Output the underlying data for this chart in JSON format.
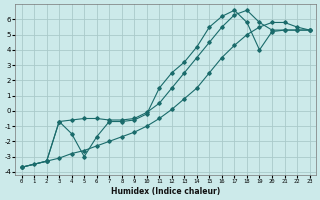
{
  "xlabel": "Humidex (Indice chaleur)",
  "bg_color": "#cceaea",
  "grid_color": "#aacaca",
  "line_color": "#1a6b6b",
  "xlim": [
    -0.5,
    23.5
  ],
  "ylim": [
    -4.2,
    7.0
  ],
  "xticks": [
    0,
    1,
    2,
    3,
    4,
    5,
    6,
    7,
    8,
    9,
    10,
    11,
    12,
    13,
    14,
    15,
    16,
    17,
    18,
    19,
    20,
    21,
    22,
    23
  ],
  "yticks": [
    -4,
    -3,
    -2,
    -1,
    0,
    1,
    2,
    3,
    4,
    5,
    6
  ],
  "line1_x": [
    0,
    1,
    2,
    3,
    4,
    5,
    6,
    7,
    8,
    9,
    10,
    11,
    12,
    13,
    14,
    15,
    16,
    17,
    18,
    19,
    20,
    21,
    22,
    23
  ],
  "line1_y": [
    -3.7,
    -3.5,
    -3.3,
    -3.1,
    -2.8,
    -2.6,
    -2.3,
    -2.0,
    -1.7,
    -1.4,
    -1.0,
    -0.5,
    0.1,
    0.8,
    1.5,
    2.5,
    3.5,
    4.3,
    5.0,
    5.5,
    5.8,
    5.8,
    5.5,
    5.3
  ],
  "line2_x": [
    0,
    2,
    3,
    4,
    5,
    6,
    7,
    8,
    9,
    10,
    11,
    12,
    13,
    14,
    15,
    16,
    17,
    18,
    19,
    20,
    21,
    22,
    23
  ],
  "line2_y": [
    -3.7,
    -3.3,
    -0.7,
    -0.6,
    -0.5,
    -0.5,
    -0.6,
    -0.6,
    -0.5,
    -0.1,
    0.5,
    1.5,
    2.5,
    3.5,
    4.5,
    5.5,
    6.3,
    6.6,
    5.8,
    5.3,
    5.3,
    5.3,
    5.3
  ],
  "line3_x": [
    0,
    2,
    3,
    4,
    5,
    6,
    7,
    8,
    9,
    10,
    11,
    12,
    13,
    14,
    15,
    16,
    17,
    18,
    19,
    20,
    21,
    22,
    23
  ],
  "line3_y": [
    -3.7,
    -3.3,
    -0.7,
    -1.5,
    -3.0,
    -1.7,
    -0.7,
    -0.7,
    -0.6,
    -0.2,
    1.5,
    2.5,
    3.2,
    4.2,
    5.5,
    6.2,
    6.6,
    5.8,
    4.0,
    5.2,
    5.3,
    5.3,
    5.3
  ]
}
